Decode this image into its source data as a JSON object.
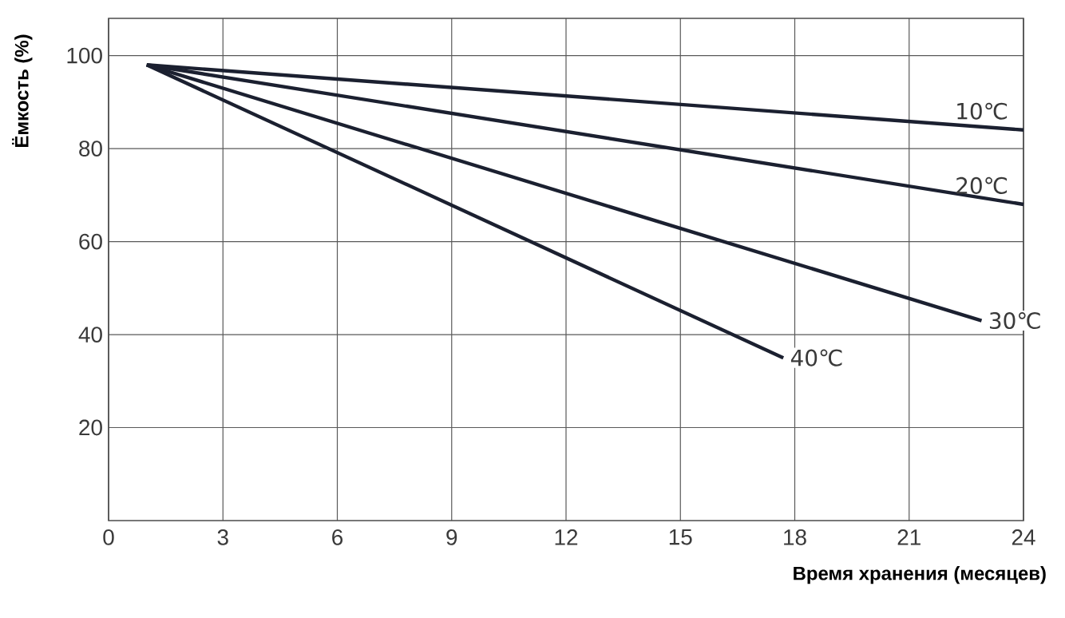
{
  "chart_data": {
    "type": "line",
    "xlabel": "Время хранения (месяцев)",
    "ylabel": "Ёмкость (%)",
    "xlim": [
      0,
      24
    ],
    "ylim": [
      0,
      108
    ],
    "xticks": [
      0,
      3,
      6,
      9,
      12,
      15,
      18,
      21,
      24
    ],
    "yticks": [
      20,
      40,
      60,
      80,
      100
    ],
    "grid": true,
    "legend": false,
    "marker": "none",
    "line_style": "solid",
    "series": [
      {
        "name": "10℃",
        "color": "#1b2030",
        "x": [
          1,
          24
        ],
        "values": [
          98,
          84
        ]
      },
      {
        "name": "20℃",
        "color": "#1b2030",
        "x": [
          1,
          24
        ],
        "values": [
          98,
          68
        ]
      },
      {
        "name": "30℃",
        "color": "#1b2030",
        "x": [
          1,
          22.9
        ],
        "values": [
          98,
          43
        ]
      },
      {
        "name": "40℃",
        "color": "#1b2030",
        "x": [
          1,
          17.7
        ],
        "values": [
          98,
          35
        ]
      }
    ]
  }
}
